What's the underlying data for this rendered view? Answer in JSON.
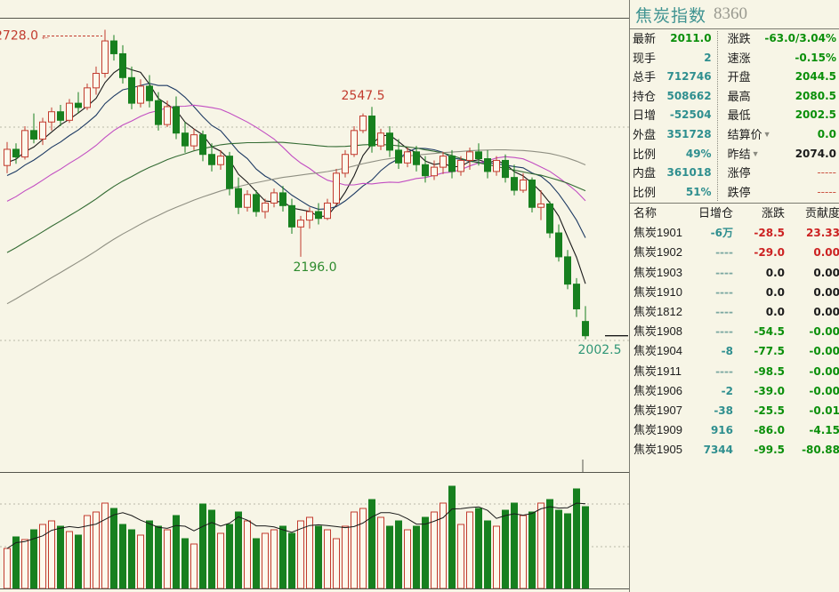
{
  "header": {
    "title": "焦炭指数",
    "code": "8360"
  },
  "colors": {
    "background": "#f7f5e6",
    "up": "#c23b2e",
    "up_fill": "#fcf9ec",
    "down": "#17801f",
    "border": "#55554c",
    "grid": "#b9b9a8",
    "teal": "#2f8f8f",
    "green": "#0a8f0a",
    "red": "#cc2222"
  },
  "quote": {
    "left": [
      {
        "label": "最新",
        "value": "2011.0",
        "cls": "green"
      },
      {
        "label": "现手",
        "value": "2",
        "cls": "teal"
      },
      {
        "label": "总手",
        "value": "712746",
        "cls": "teal"
      },
      {
        "label": "持仓",
        "value": "508662",
        "cls": "teal"
      },
      {
        "label": "日增",
        "value": "-52504",
        "cls": "teal"
      },
      {
        "label": "外盘",
        "value": "351728",
        "cls": "teal"
      },
      {
        "label": "比例",
        "value": "49%",
        "cls": "teal"
      },
      {
        "label": "内盘",
        "value": "361018",
        "cls": "teal"
      },
      {
        "label": "比例",
        "value": "51%",
        "cls": "teal"
      }
    ],
    "right": [
      {
        "label": "涨跌",
        "value": "-63.0/3.04%",
        "cls": "green",
        "arrow": ""
      },
      {
        "label": "速涨",
        "value": "-0.15%",
        "cls": "green",
        "arrow": ""
      },
      {
        "label": "开盘",
        "value": "2044.5",
        "cls": "green",
        "arrow": ""
      },
      {
        "label": "最高",
        "value": "2080.5",
        "cls": "green",
        "arrow": ""
      },
      {
        "label": "最低",
        "value": "2002.5",
        "cls": "green",
        "arrow": ""
      },
      {
        "label": "结算价",
        "value": "0.0",
        "cls": "green",
        "arrow": "▼"
      },
      {
        "label": "昨结",
        "value": "2074.0",
        "cls": "black",
        "arrow": "▼"
      },
      {
        "label": "涨停",
        "value": "-----",
        "cls": "dashred",
        "arrow": ""
      },
      {
        "label": "跌停",
        "value": "-----",
        "cls": "dashred",
        "arrow": ""
      }
    ]
  },
  "table": {
    "headers": [
      "名称",
      "日增仓",
      "涨跌",
      "贡献度"
    ],
    "rows": [
      {
        "name": "焦炭1901",
        "inc": "-6万",
        "chg": "-28.5",
        "ctb": "23.33",
        "inc_cls": "teal",
        "chg_cls": "red",
        "ctb_cls": "red"
      },
      {
        "name": "焦炭1902",
        "inc": "----",
        "chg": "-29.0",
        "ctb": "0.00",
        "inc_cls": "graydash",
        "chg_cls": "red",
        "ctb_cls": "red"
      },
      {
        "name": "焦炭1903",
        "inc": "----",
        "chg": "0.0",
        "ctb": "0.00",
        "inc_cls": "graydash",
        "chg_cls": "black",
        "ctb_cls": "black"
      },
      {
        "name": "焦炭1910",
        "inc": "----",
        "chg": "0.0",
        "ctb": "0.00",
        "inc_cls": "graydash",
        "chg_cls": "black",
        "ctb_cls": "black"
      },
      {
        "name": "焦炭1812",
        "inc": "----",
        "chg": "0.0",
        "ctb": "0.00",
        "inc_cls": "graydash",
        "chg_cls": "black",
        "ctb_cls": "black"
      },
      {
        "name": "焦炭1908",
        "inc": "----",
        "chg": "-54.5",
        "ctb": "-0.00",
        "inc_cls": "graydash",
        "chg_cls": "green",
        "ctb_cls": "green"
      },
      {
        "name": "焦炭1904",
        "inc": "-8",
        "chg": "-77.5",
        "ctb": "-0.00",
        "inc_cls": "teal",
        "chg_cls": "green",
        "ctb_cls": "green"
      },
      {
        "name": "焦炭1911",
        "inc": "----",
        "chg": "-98.5",
        "ctb": "-0.00",
        "inc_cls": "graydash",
        "chg_cls": "green",
        "ctb_cls": "green"
      },
      {
        "name": "焦炭1906",
        "inc": "-2",
        "chg": "-39.0",
        "ctb": "-0.00",
        "inc_cls": "teal",
        "chg_cls": "green",
        "ctb_cls": "green"
      },
      {
        "name": "焦炭1907",
        "inc": "-38",
        "chg": "-25.5",
        "ctb": "-0.01",
        "inc_cls": "teal",
        "chg_cls": "green",
        "ctb_cls": "green"
      },
      {
        "name": "焦炭1909",
        "inc": "916",
        "chg": "-86.0",
        "ctb": "-4.15",
        "inc_cls": "teal",
        "chg_cls": "green",
        "ctb_cls": "green"
      },
      {
        "name": "焦炭1905",
        "inc": "7344",
        "chg": "-99.5",
        "ctb": "-80.88",
        "inc_cls": "teal",
        "chg_cls": "green",
        "ctb_cls": "green"
      }
    ]
  },
  "chart_data": {
    "type": "candlestick",
    "title": "焦炭指数 8360",
    "last_price": 2011.0,
    "gridline_prices": [
      2500,
      2000
    ],
    "annotations": [
      {
        "text": "2728.0",
        "index": 11,
        "price": 2728.0,
        "color": "#c23b2e",
        "style": "arrow-left"
      },
      {
        "text": "2547.5",
        "index": 41,
        "price": 2547.5,
        "color": "#c23b2e",
        "style": "above"
      },
      {
        "text": "2196.0",
        "index": 33,
        "price": 2196.0,
        "color": "#2e8b2e",
        "style": "below"
      },
      {
        "text": "2002.5",
        "index": 65,
        "price": 2002.5,
        "color": "#2f9676",
        "style": "below"
      }
    ],
    "ma_lines": [
      {
        "name": "ma5",
        "window": 5,
        "color": "#1a1a1a"
      },
      {
        "name": "ma10",
        "window": 10,
        "color": "#1d3a63"
      },
      {
        "name": "ma20",
        "window": 20,
        "color": "#c24ec2"
      },
      {
        "name": "ma40",
        "window": 40,
        "color": "#336b33"
      },
      {
        "name": "ma60",
        "window": 60,
        "color": "#8f8f82"
      }
    ],
    "pre_window_closes": [
      1720,
      1732,
      1744,
      1756,
      1768,
      1780,
      1792,
      1804,
      1816,
      1828,
      1840,
      1852,
      1864,
      1876,
      1888,
      1900,
      1912,
      1924,
      1936,
      1948,
      1960,
      1972,
      1984,
      1996,
      2008,
      2020,
      2032,
      2044,
      2056,
      2068,
      2080,
      2092,
      2104,
      2116,
      2128,
      2140,
      2152,
      2164,
      2176,
      2188,
      2200,
      2212,
      2224,
      2236,
      2248,
      2260,
      2272,
      2284,
      2296,
      2308,
      2320,
      2332,
      2344,
      2356,
      2368,
      2380,
      2392,
      2404,
      2416,
      2425
    ],
    "candles": [
      [
        2410,
        2465,
        2392,
        2448
      ],
      [
        2448,
        2462,
        2414,
        2430
      ],
      [
        2430,
        2502,
        2424,
        2492
      ],
      [
        2492,
        2532,
        2462,
        2472
      ],
      [
        2472,
        2522,
        2458,
        2512
      ],
      [
        2512,
        2546,
        2492,
        2536
      ],
      [
        2536,
        2552,
        2502,
        2516
      ],
      [
        2516,
        2566,
        2510,
        2556
      ],
      [
        2556,
        2582,
        2532,
        2546
      ],
      [
        2546,
        2602,
        2540,
        2592
      ],
      [
        2592,
        2642,
        2576,
        2626
      ],
      [
        2626,
        2728,
        2616,
        2702
      ],
      [
        2702,
        2716,
        2656,
        2672
      ],
      [
        2672,
        2692,
        2602,
        2616
      ],
      [
        2616,
        2642,
        2542,
        2556
      ],
      [
        2556,
        2612,
        2546,
        2596
      ],
      [
        2596,
        2622,
        2546,
        2562
      ],
      [
        2562,
        2582,
        2492,
        2506
      ],
      [
        2506,
        2562,
        2500,
        2548
      ],
      [
        2548,
        2572,
        2472,
        2486
      ],
      [
        2486,
        2512,
        2440,
        2456
      ],
      [
        2456,
        2496,
        2446,
        2482
      ],
      [
        2482,
        2492,
        2420,
        2436
      ],
      [
        2436,
        2462,
        2396,
        2412
      ],
      [
        2412,
        2446,
        2400,
        2432
      ],
      [
        2432,
        2442,
        2340,
        2356
      ],
      [
        2356,
        2382,
        2296,
        2312
      ],
      [
        2312,
        2352,
        2302,
        2342
      ],
      [
        2342,
        2352,
        2290,
        2302
      ],
      [
        2302,
        2332,
        2286,
        2322
      ],
      [
        2322,
        2356,
        2312,
        2346
      ],
      [
        2346,
        2362,
        2302,
        2316
      ],
      [
        2316,
        2332,
        2250,
        2266
      ],
      [
        2266,
        2292,
        2196,
        2282
      ],
      [
        2282,
        2312,
        2262,
        2302
      ],
      [
        2302,
        2322,
        2272,
        2286
      ],
      [
        2286,
        2332,
        2282,
        2322
      ],
      [
        2322,
        2402,
        2316,
        2392
      ],
      [
        2392,
        2446,
        2382,
        2436
      ],
      [
        2436,
        2502,
        2430,
        2492
      ],
      [
        2492,
        2532,
        2486,
        2526
      ],
      [
        2526,
        2547.5,
        2440,
        2456
      ],
      [
        2456,
        2496,
        2446,
        2486
      ],
      [
        2486,
        2502,
        2430,
        2446
      ],
      [
        2446,
        2472,
        2402,
        2416
      ],
      [
        2416,
        2452,
        2406,
        2442
      ],
      [
        2442,
        2456,
        2396,
        2412
      ],
      [
        2412,
        2432,
        2370,
        2386
      ],
      [
        2386,
        2422,
        2376,
        2406
      ],
      [
        2406,
        2442,
        2390,
        2432
      ],
      [
        2432,
        2446,
        2380,
        2396
      ],
      [
        2396,
        2432,
        2386,
        2422
      ],
      [
        2422,
        2452,
        2400,
        2442
      ],
      [
        2442,
        2462,
        2410,
        2426
      ],
      [
        2426,
        2446,
        2380,
        2396
      ],
      [
        2396,
        2432,
        2386,
        2422
      ],
      [
        2422,
        2436,
        2370,
        2382
      ],
      [
        2382,
        2412,
        2340,
        2352
      ],
      [
        2352,
        2392,
        2346,
        2376
      ],
      [
        2376,
        2382,
        2300,
        2312
      ],
      [
        2312,
        2352,
        2282,
        2320
      ],
      [
        2320,
        2326,
        2240,
        2252
      ],
      [
        2252,
        2272,
        2185,
        2196
      ],
      [
        2196,
        2212,
        2120,
        2132
      ],
      [
        2132,
        2146,
        2055,
        2074
      ],
      [
        2044.5,
        2080.5,
        2002.5,
        2011
      ]
    ],
    "volumes": [
      45,
      58,
      55,
      66,
      72,
      76,
      70,
      64,
      60,
      82,
      86,
      96,
      90,
      72,
      66,
      60,
      76,
      70,
      66,
      82,
      56,
      50,
      95,
      88,
      62,
      72,
      86,
      76,
      56,
      62,
      66,
      70,
      62,
      76,
      80,
      70,
      66,
      56,
      70,
      86,
      90,
      100,
      80,
      70,
      76,
      66,
      70,
      80,
      86,
      96,
      115,
      72,
      86,
      90,
      76,
      70,
      88,
      96,
      82,
      86,
      96,
      100,
      88,
      84,
      112,
      92
    ]
  }
}
